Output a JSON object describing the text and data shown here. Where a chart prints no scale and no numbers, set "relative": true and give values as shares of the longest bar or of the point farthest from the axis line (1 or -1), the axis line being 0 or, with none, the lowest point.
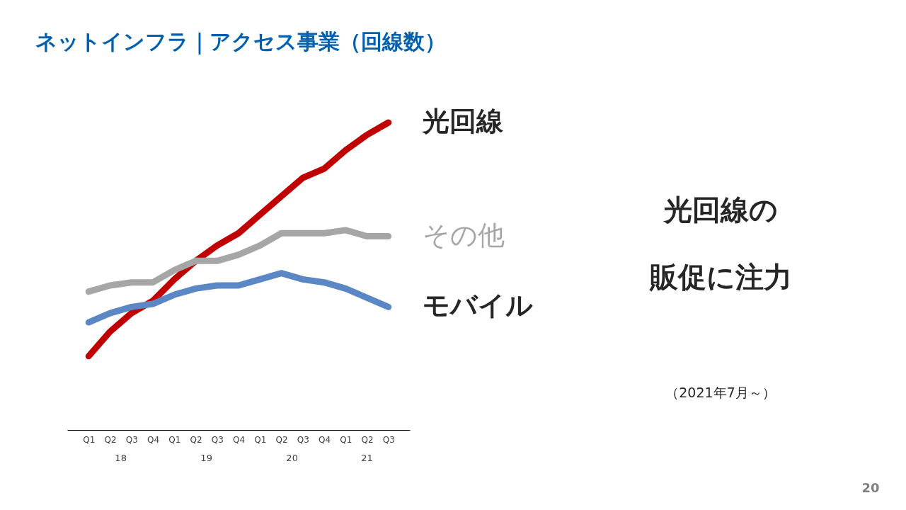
{
  "chart_data": {
    "type": "line",
    "title": "ネットインフラ｜アクセス事業（回線数）",
    "relative": true,
    "categories": [
      "Q1",
      "Q2",
      "Q3",
      "Q4",
      "Q1",
      "Q2",
      "Q3",
      "Q4",
      "Q1",
      "Q2",
      "Q3",
      "Q4",
      "Q1",
      "Q2",
      "Q3"
    ],
    "series": [
      {
        "name": "光回線",
        "color": "#c00000",
        "values": [
          0.24,
          0.32,
          0.38,
          0.42,
          0.49,
          0.55,
          0.6,
          0.64,
          0.7,
          0.76,
          0.82,
          0.85,
          0.91,
          0.96,
          1.0
        ]
      },
      {
        "name": "その他",
        "color": "#a6a6a6",
        "values": [
          0.45,
          0.47,
          0.48,
          0.48,
          0.52,
          0.55,
          0.55,
          0.57,
          0.6,
          0.64,
          0.64,
          0.64,
          0.65,
          0.63,
          0.63
        ]
      },
      {
        "name": "モバイル",
        "color": "#5b87c5",
        "values": [
          0.35,
          0.38,
          0.4,
          0.41,
          0.44,
          0.46,
          0.47,
          0.47,
          0.49,
          0.51,
          0.49,
          0.48,
          0.46,
          0.43,
          0.4
        ]
      }
    ],
    "annotations": [
      "18",
      "19",
      "20",
      "21",
      "光回線の",
      "販促に注力",
      "（2021年7月～）",
      "20"
    ],
    "grid": false,
    "marker": "none",
    "line_style": "solid"
  }
}
